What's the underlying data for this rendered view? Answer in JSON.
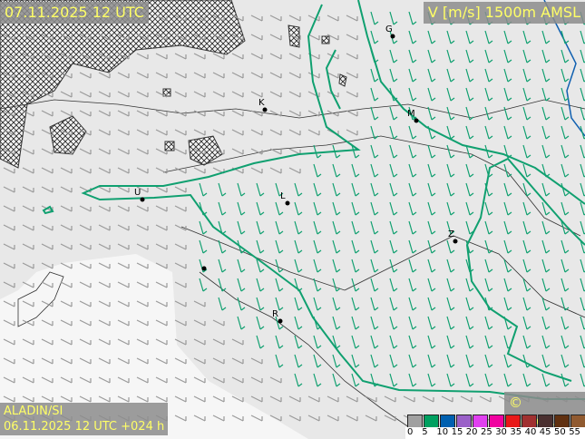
{
  "header": {
    "datetime": "07.11.2025 12 UTC",
    "variable": "V [m/s] 1500m AMSL"
  },
  "footer": {
    "model": "ALADIN/SI",
    "run": "06.11.2025 12 UTC +024 h",
    "copyright": "© meteo.si"
  },
  "cities": [
    {
      "label": "G"
    },
    {
      "label": "K"
    },
    {
      "label": "M"
    },
    {
      "label": "U"
    },
    {
      "label": "L"
    },
    {
      "label": "Z"
    },
    {
      "label": "R"
    }
  ],
  "legend": {
    "ticks": [
      "0",
      "5",
      "10",
      "15",
      "20",
      "25",
      "30",
      "35",
      "40",
      "45",
      "50",
      "55"
    ],
    "colors": [
      "#a0a0a0",
      "#00a060",
      "#0060b0",
      "#9a60c8",
      "#e040f0",
      "#f000a0",
      "#e81818",
      "#a03030",
      "#4a3030",
      "#603010",
      "#905a30",
      "#b8a070"
    ]
  },
  "contour_color": "#10a070",
  "hatch_meaning_icon": "crosshatch-pattern"
}
